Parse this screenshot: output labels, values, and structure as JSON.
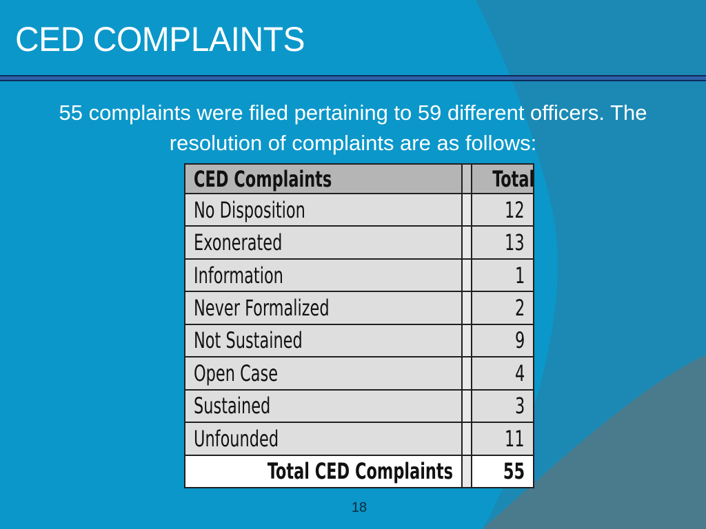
{
  "slide": {
    "title": "CED COMPLAINTS",
    "intro": "55 complaints were filed pertaining to 59 different officers.  The resolution of complaints are as follows:",
    "page_number": "18"
  },
  "table": {
    "headers": [
      "CED Complaints",
      "Total"
    ],
    "rows": [
      {
        "label": "No Disposition",
        "total": "12"
      },
      {
        "label": "Exonerated",
        "total": "13"
      },
      {
        "label": "Information",
        "total": "1"
      },
      {
        "label": "Never Formalized",
        "total": "2"
      },
      {
        "label": "Not Sustained",
        "total": "9"
      },
      {
        "label": "Open Case",
        "total": "4"
      },
      {
        "label": "Sustained",
        "total": "3"
      },
      {
        "label": "Unfounded",
        "total": "11"
      }
    ],
    "total_row": {
      "label": "Total CED Complaints",
      "total": "55"
    }
  },
  "colors": {
    "background": "#0b97c9",
    "background_dark": "#2b7a96",
    "rule": "#2f61a8"
  }
}
